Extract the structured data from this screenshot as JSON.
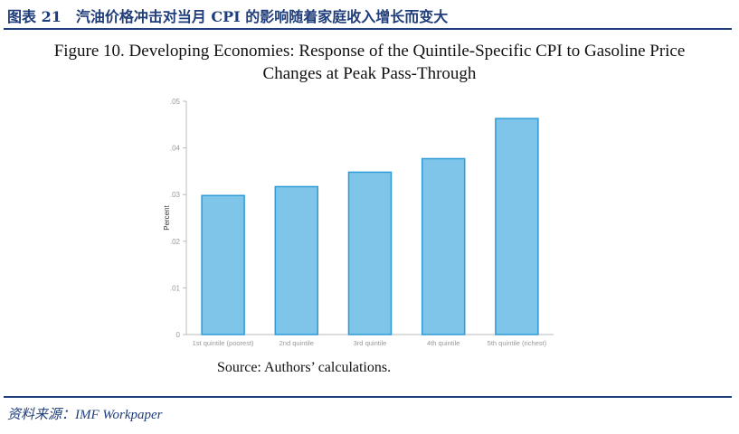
{
  "report": {
    "caption": "图表 21　汽油价格冲击对当月 CPI 的影响随着家庭收入增长而变大",
    "source_credit": "资料来源：IMF Workpaper"
  },
  "figure": {
    "title_line1": "Figure 10. Developing Economies: Response of the Quintile-Specific CPI to Gasoline Price",
    "title_line2": "Changes at Peak Pass-Through",
    "source": "Source: Authors’ calculations."
  },
  "colors": {
    "bar_fill": "#7fc5ea",
    "bar_stroke": "#2e9bd6",
    "axis": "#bbbbbb",
    "tick_text": "#999999",
    "header_blue": "#1f3d7a"
  },
  "chart_data": {
    "type": "bar",
    "title": "Figure 10. Developing Economies: Response of the Quintile-Specific CPI to Gasoline Price Changes at Peak Pass-Through",
    "categories": [
      "1st quintile (poorest)",
      "2nd quintile",
      "3rd quintile",
      "4th quintile",
      "5th quintile (richest)"
    ],
    "values": [
      0.0298,
      0.0317,
      0.0348,
      0.0377,
      0.0463
    ],
    "ylabel": "Percent",
    "xlabel": "",
    "ylim": [
      0,
      0.05
    ],
    "yticks": [
      0,
      0.01,
      0.02,
      0.03,
      0.04,
      0.05
    ],
    "ytick_labels": [
      "0",
      ".01",
      ".02",
      ".03",
      ".04",
      ".05"
    ],
    "grid": false,
    "legend": "none"
  }
}
